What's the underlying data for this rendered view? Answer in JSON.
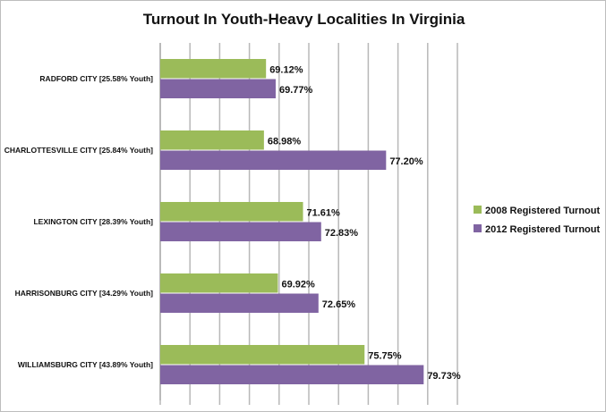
{
  "chart_data": {
    "type": "bar",
    "orientation": "horizontal",
    "title": "Turnout In Youth-Heavy Localities In Virginia",
    "categories": [
      "RADFORD CITY [25.58% Youth]",
      "CHARLOTTESVILLE CITY [25.84% Youth]",
      "LEXINGTON CITY [28.39% Youth]",
      "HARRISONBURG CITY [34.29% Youth]",
      "WILLIAMSBURG CITY [43.89% Youth]"
    ],
    "series": [
      {
        "name": "2008 Registered Turnout",
        "color": "#9bbb59",
        "values": [
          69.12,
          68.98,
          71.61,
          69.92,
          75.75
        ],
        "labels": [
          "69.12%",
          "68.98%",
          "71.61%",
          "69.92%",
          "75.75%"
        ]
      },
      {
        "name": "2012 Registered Turnout",
        "color": "#8064a2",
        "values": [
          69.77,
          77.2,
          72.83,
          72.65,
          79.73
        ],
        "labels": [
          "69.77%",
          "77.20%",
          "72.83%",
          "72.65%",
          "79.73%"
        ]
      }
    ],
    "xlim": [
      62,
      82
    ],
    "x_grid_step": 2,
    "x_tick_labels_shown": false,
    "grid": true,
    "legend_position": "right",
    "xlabel": "",
    "ylabel": ""
  }
}
